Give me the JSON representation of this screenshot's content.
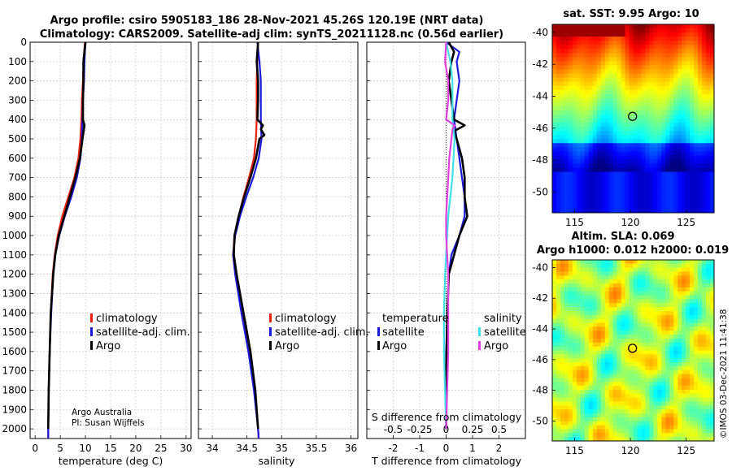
{
  "header": {
    "title_line1": "Argo profile: csiro 5905183_186 28-Nov-2021 45.26S 120.19E (NRT data)",
    "title_line2": "Climatology: CARS2009. Satellite-adj clim: synTS_20211128.nc (0.56d earlier)"
  },
  "credits": {
    "org": "Argo Australia",
    "pi": "PI: Susan Wijffels",
    "watermark": "©IMOS 03-Dec-2021 11:41:38"
  },
  "colors": {
    "argo": "#000000",
    "climatology": "#e8200c",
    "satellite_adj": "#1a1adb",
    "temp_sat": "#1a1adb",
    "sal_sat": "#3fe0e8",
    "sal_argo": "#e040e0"
  },
  "chart_data": [
    {
      "type": "line",
      "name": "temperature-panel",
      "xlabel": "temperature (deg C)",
      "xlim": [
        -1,
        31
      ],
      "xticks": [
        0,
        5,
        10,
        15,
        20,
        25,
        30
      ],
      "ylim": [
        0,
        2050
      ],
      "yticks": [
        0,
        100,
        200,
        300,
        400,
        500,
        600,
        700,
        800,
        900,
        1000,
        1100,
        1200,
        1300,
        1400,
        1500,
        1600,
        1700,
        1800,
        1900,
        2000
      ],
      "legend": [
        "climatology",
        "satellite-adj. clim.",
        "Argo"
      ],
      "series": [
        {
          "name": "climatology",
          "color": "#e8200c",
          "depth": [
            0,
            100,
            200,
            300,
            400,
            500,
            600,
            700,
            800,
            900,
            1000,
            1100,
            1200,
            1400,
            1600,
            1800,
            2000,
            2050
          ],
          "values": [
            9.9,
            9.6,
            9.5,
            9.3,
            9.2,
            9.0,
            8.6,
            7.8,
            6.6,
            5.4,
            4.5,
            3.9,
            3.5,
            3.1,
            2.9,
            2.7,
            2.6,
            2.6
          ]
        },
        {
          "name": "satellite-adj. clim.",
          "color": "#1a1adb",
          "depth": [
            0,
            100,
            200,
            300,
            400,
            500,
            600,
            700,
            800,
            900,
            1000,
            1100,
            1200,
            1400,
            1600,
            1800,
            2000,
            2050
          ],
          "values": [
            10.0,
            9.8,
            9.7,
            9.5,
            9.4,
            9.3,
            9.0,
            8.3,
            7.2,
            5.9,
            4.8,
            4.0,
            3.6,
            3.2,
            2.9,
            2.7,
            2.6,
            2.6
          ]
        },
        {
          "name": "Argo",
          "color": "#000000",
          "depth": [
            0,
            100,
            200,
            300,
            400,
            430,
            450,
            500,
            600,
            700,
            800,
            900,
            1000,
            1100,
            1200,
            1400,
            1600,
            1800,
            2000
          ],
          "values": [
            10.0,
            9.6,
            9.6,
            9.5,
            9.5,
            9.8,
            9.7,
            9.4,
            8.9,
            8.0,
            6.9,
            5.8,
            4.7,
            4.0,
            3.6,
            3.1,
            2.9,
            2.7,
            2.6
          ]
        }
      ]
    },
    {
      "type": "line",
      "name": "salinity-panel",
      "xlabel": "salinity",
      "xlim": [
        33.8,
        36.1
      ],
      "xticks": [
        34,
        34.5,
        35,
        35.5,
        36
      ],
      "ylim": [
        0,
        2050
      ],
      "legend": [
        "climatology",
        "satellite-adj. clim.",
        "Argo"
      ],
      "series": [
        {
          "name": "climatology",
          "color": "#e8200c",
          "depth": [
            0,
            100,
            200,
            300,
            400,
            500,
            600,
            700,
            800,
            900,
            1000,
            1100,
            1200,
            1400,
            1600,
            1800,
            2000,
            2050
          ],
          "values": [
            34.66,
            34.65,
            34.64,
            34.64,
            34.64,
            34.63,
            34.6,
            34.53,
            34.45,
            34.38,
            34.32,
            34.3,
            34.33,
            34.43,
            34.53,
            34.61,
            34.66,
            34.67
          ]
        },
        {
          "name": "satellite-adj. clim.",
          "color": "#1a1adb",
          "depth": [
            0,
            100,
            200,
            300,
            400,
            500,
            600,
            700,
            800,
            900,
            1000,
            1100,
            1200,
            1400,
            1600,
            1800,
            2000,
            2050
          ],
          "values": [
            34.65,
            34.68,
            34.7,
            34.7,
            34.7,
            34.71,
            34.67,
            34.59,
            34.49,
            34.4,
            34.33,
            34.3,
            34.33,
            34.42,
            34.52,
            34.6,
            34.66,
            34.67
          ]
        },
        {
          "name": "Argo",
          "color": "#000000",
          "depth": [
            0,
            100,
            200,
            300,
            400,
            430,
            450,
            480,
            500,
            600,
            700,
            800,
            900,
            1000,
            1100,
            1200,
            1400,
            1600,
            1800,
            2000
          ],
          "values": [
            34.66,
            34.64,
            34.66,
            34.66,
            34.65,
            34.73,
            34.7,
            34.75,
            34.68,
            34.63,
            34.55,
            34.46,
            34.38,
            34.32,
            34.31,
            34.35,
            34.45,
            34.55,
            34.62,
            34.66
          ]
        }
      ]
    },
    {
      "type": "line",
      "name": "difference-panel",
      "xlabel": "T difference from climatology",
      "xlabel_top": "S difference from climatology",
      "xlim": [
        -3,
        3
      ],
      "xticks": [
        -2,
        -1,
        0,
        1,
        2
      ],
      "xticks_salinity": [
        "-0.5",
        "-0.25",
        "0",
        "0.25",
        "0.5"
      ],
      "ylim": [
        0,
        2050
      ],
      "legend_temperature_title": "temperature",
      "legend_temperature": [
        "satellite",
        "Argo"
      ],
      "legend_salinity_title": "salinity",
      "legend_salinity": [
        "satellite",
        "Argo"
      ],
      "series": [
        {
          "name": "temperature-satellite",
          "color": "#1a1adb",
          "depth": [
            0,
            50,
            100,
            200,
            300,
            400,
            500,
            600,
            700,
            800,
            900,
            1000,
            1100,
            1200,
            1400,
            1600,
            1800,
            2000
          ],
          "values": [
            0.0,
            0.5,
            0.4,
            0.5,
            0.4,
            0.3,
            0.4,
            0.5,
            0.6,
            0.7,
            0.7,
            0.5,
            0.2,
            0.1,
            0.05,
            0.0,
            0.0,
            0.0
          ]
        },
        {
          "name": "temperature-Argo",
          "color": "#000000",
          "depth": [
            0,
            50,
            100,
            200,
            300,
            400,
            430,
            460,
            500,
            600,
            700,
            800,
            900,
            1000,
            1100,
            1200,
            1400,
            1600,
            1800,
            2000
          ],
          "values": [
            0.1,
            0.3,
            0.2,
            0.1,
            0.2,
            0.3,
            0.7,
            0.3,
            0.4,
            0.6,
            0.7,
            0.7,
            0.8,
            0.5,
            0.3,
            0.1,
            0.05,
            0.02,
            0.0,
            0.0
          ]
        },
        {
          "name": "salinity-satellite",
          "color": "#3fe0e8",
          "depth": [
            0,
            100,
            200,
            300,
            400,
            500,
            600,
            700,
            800,
            900,
            1000,
            1100,
            1200,
            1400,
            1600,
            1800,
            2000
          ],
          "values": [
            0.0,
            0.04,
            0.06,
            0.06,
            0.06,
            0.08,
            0.07,
            0.06,
            0.04,
            0.02,
            0.01,
            0.0,
            -0.01,
            -0.02,
            -0.02,
            -0.01,
            0.0
          ]
        },
        {
          "name": "salinity-Argo",
          "color": "#e040e0",
          "depth": [
            0,
            100,
            200,
            300,
            400,
            430,
            450,
            500,
            600,
            700,
            800,
            900,
            1000,
            1100,
            1200,
            1400,
            1600,
            1800,
            2000
          ],
          "values": [
            0.0,
            -0.01,
            0.02,
            0.02,
            0.0,
            0.08,
            0.06,
            0.05,
            0.03,
            0.02,
            0.01,
            0.0,
            0.0,
            0.01,
            0.02,
            0.02,
            0.02,
            0.01,
            0.0
          ]
        }
      ]
    },
    {
      "type": "heatmap",
      "name": "sst-map",
      "title": "sat. SST: 9.95 Argo: 10",
      "xlim": [
        113,
        127.5
      ],
      "ylim": [
        -51.3,
        -39.5
      ],
      "xticks": [
        115,
        120,
        125
      ],
      "yticks": [
        -40,
        -42,
        -44,
        -46,
        -48,
        -50
      ],
      "marker": [
        120.19,
        -45.26
      ]
    },
    {
      "type": "heatmap",
      "name": "sla-map",
      "title_line1": "Altim. SLA: 0.069",
      "title_line2": "Argo h1000: 0.012 h2000: 0.019",
      "xlim": [
        113,
        127.5
      ],
      "ylim": [
        -51.3,
        -39.5
      ],
      "xticks": [
        115,
        120,
        125
      ],
      "yticks": [
        -40,
        -42,
        -44,
        -46,
        -48,
        -50
      ],
      "marker": [
        120.19,
        -45.26
      ]
    }
  ]
}
